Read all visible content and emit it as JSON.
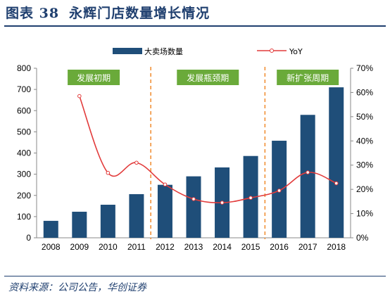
{
  "header": {
    "figure_no": "图表 38",
    "title": "永辉门店数量增长情况"
  },
  "source": "资料来源：公司公告，华创证券",
  "colors": {
    "bar": "#1f4e79",
    "line": "#e23b3b",
    "phase_box": "#6aaa3a",
    "divider": "#f08a2c",
    "title": "#1f3f6f"
  },
  "chart_data": {
    "type": "bar",
    "categories": [
      "2008",
      "2009",
      "2010",
      "2011",
      "2012",
      "2013",
      "2014",
      "2015",
      "2016",
      "2017",
      "2018"
    ],
    "series": [
      {
        "name": "大卖场数量",
        "type": "bar",
        "axis": "left",
        "values": [
          80,
          123,
          156,
          206,
          250,
          290,
          332,
          386,
          458,
          580,
          710
        ]
      },
      {
        "name": "YoY",
        "type": "line",
        "axis": "right",
        "values": [
          null,
          58.5,
          26.8,
          31.0,
          22.0,
          16.0,
          14.5,
          16.5,
          19.5,
          27.0,
          22.5
        ]
      }
    ],
    "y_left": {
      "min": 0,
      "max": 800,
      "ticks": [
        "0",
        "100",
        "200",
        "300",
        "400",
        "500",
        "600",
        "700",
        "800"
      ]
    },
    "y_right": {
      "min": 0,
      "max": 70,
      "ticks": [
        "0%",
        "10%",
        "20%",
        "30%",
        "40%",
        "50%",
        "60%",
        "70%"
      ]
    },
    "phases": [
      {
        "label": "发展初期",
        "from": "2008",
        "to": "2011"
      },
      {
        "label": "发展瓶颈期",
        "from": "2012",
        "to": "2015"
      },
      {
        "label": "新扩张周期",
        "from": "2016",
        "to": "2018"
      }
    ],
    "dividers_after": [
      "2011",
      "2015"
    ],
    "legend_position": "top",
    "grid": false
  }
}
